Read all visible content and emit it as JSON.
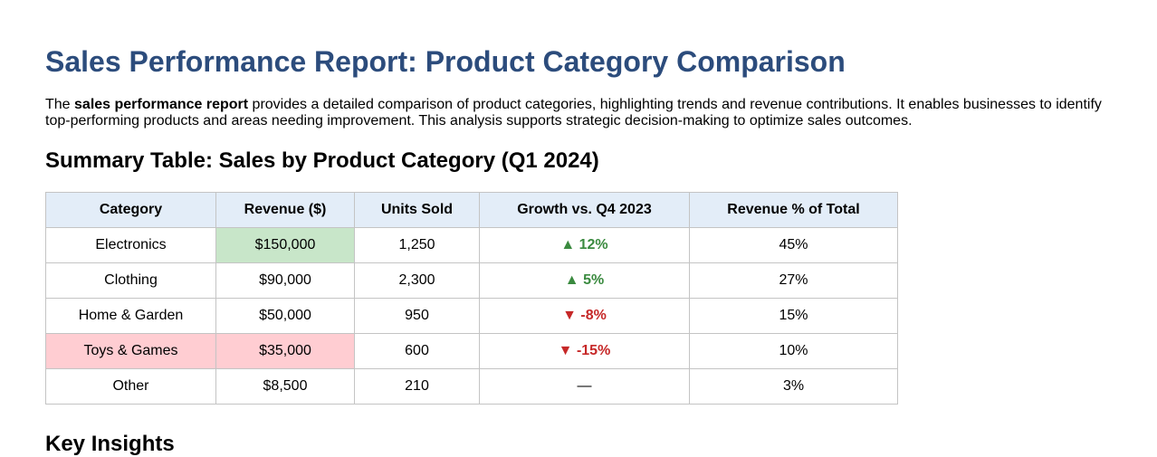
{
  "title": "Sales Performance Report: Product Category Comparison",
  "intro": {
    "prefix": "The ",
    "bold": "sales performance report",
    "suffix": " provides a detailed comparison of product categories, highlighting trends and revenue contributions. It enables businesses to identify top-performing products and areas needing improvement. This analysis supports strategic decision-making to optimize sales outcomes."
  },
  "summary_heading": "Summary Table: Sales by Product Category (Q1 2024)",
  "table": {
    "headers": [
      "Category",
      "Revenue ($)",
      "Units Sold",
      "Growth vs. Q4 2023",
      "Revenue % of Total"
    ],
    "rows": [
      {
        "category": "Electronics",
        "revenue": "$150,000",
        "units": "1,250",
        "growth": "▲ 12%",
        "trend": "up",
        "share": "45%",
        "highlight": "green-revenue"
      },
      {
        "category": "Clothing",
        "revenue": "$90,000",
        "units": "2,300",
        "growth": "▲ 5%",
        "trend": "up",
        "share": "27%",
        "highlight": ""
      },
      {
        "category": "Home & Garden",
        "revenue": "$50,000",
        "units": "950",
        "growth": "▼ -8%",
        "trend": "down",
        "share": "15%",
        "highlight": ""
      },
      {
        "category": "Toys & Games",
        "revenue": "$35,000",
        "units": "600",
        "growth": "▼ -15%",
        "trend": "down",
        "share": "10%",
        "highlight": "red-category-revenue"
      },
      {
        "category": "Other",
        "revenue": "$8,500",
        "units": "210",
        "growth": "—",
        "trend": "none",
        "share": "3%",
        "highlight": ""
      }
    ]
  },
  "insights_heading": "Key Insights",
  "colors": {
    "title": "#2c4c7c",
    "header_bg": "#e3edf8",
    "green_highlight": "#c8e6c9",
    "red_highlight": "#ffcdd2",
    "up": "#3a8a3f",
    "down": "#c62828"
  }
}
